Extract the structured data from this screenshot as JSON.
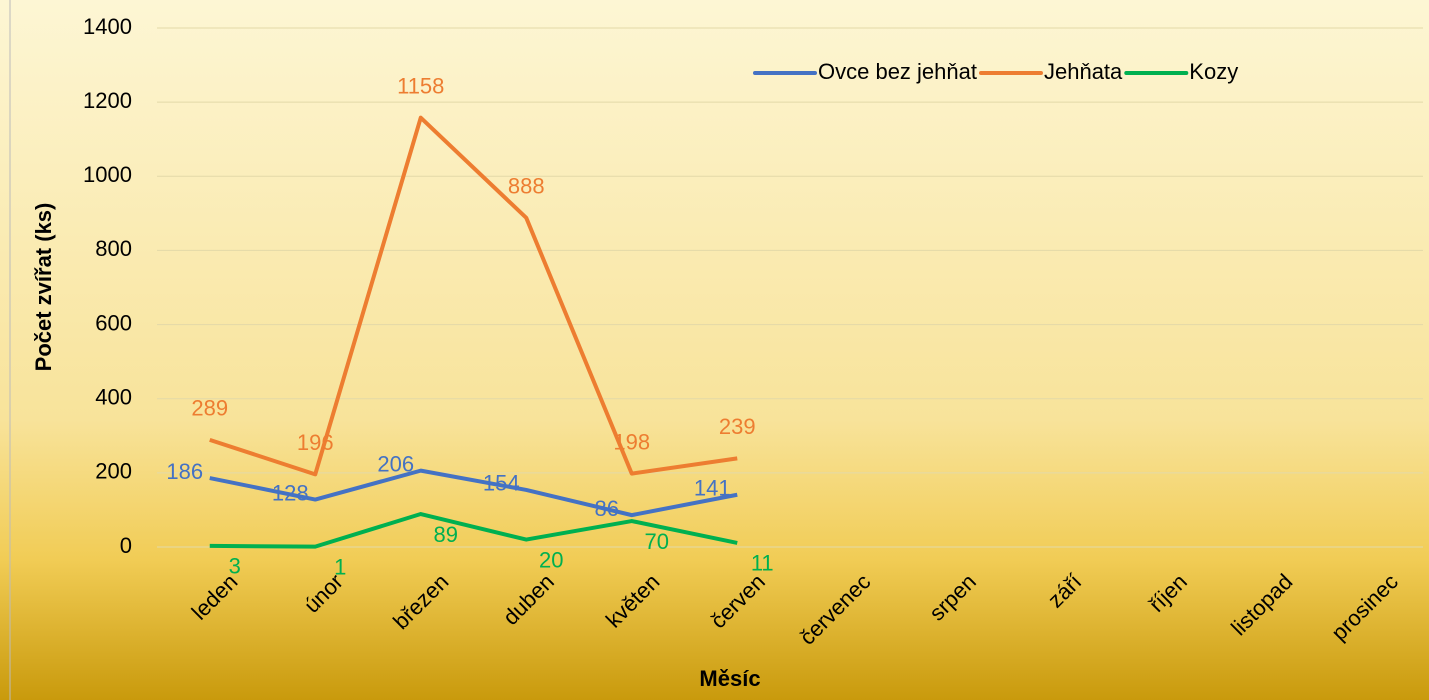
{
  "chart_data": {
    "type": "line",
    "x_label": "Měsíc",
    "y_label": "Počet zvířat (ks)",
    "categories": [
      "leden",
      "únor",
      "březen",
      "duben",
      "květen",
      "červen",
      "červenec",
      "srpen",
      "září",
      "říjen",
      "listopad",
      "prosinec"
    ],
    "series": [
      {
        "name": "Ovce bez jehňat",
        "color": "#4472c4",
        "values": [
          186,
          128,
          206,
          154,
          86,
          141,
          null,
          null,
          null,
          null,
          null,
          null
        ]
      },
      {
        "name": "Jehňata",
        "color": "#ed7d31",
        "values": [
          289,
          196,
          1158,
          888,
          198,
          239,
          null,
          null,
          null,
          null,
          null,
          null
        ]
      },
      {
        "name": "Kozy",
        "color": "#00b050",
        "values": [
          3,
          1,
          89,
          20,
          70,
          11,
          null,
          null,
          null,
          null,
          null,
          null
        ]
      }
    ],
    "ylim": [
      0,
      1400
    ],
    "yticks": [
      0,
      200,
      400,
      600,
      800,
      1000,
      1200,
      1400
    ],
    "grid": true,
    "legend": "top-right"
  }
}
